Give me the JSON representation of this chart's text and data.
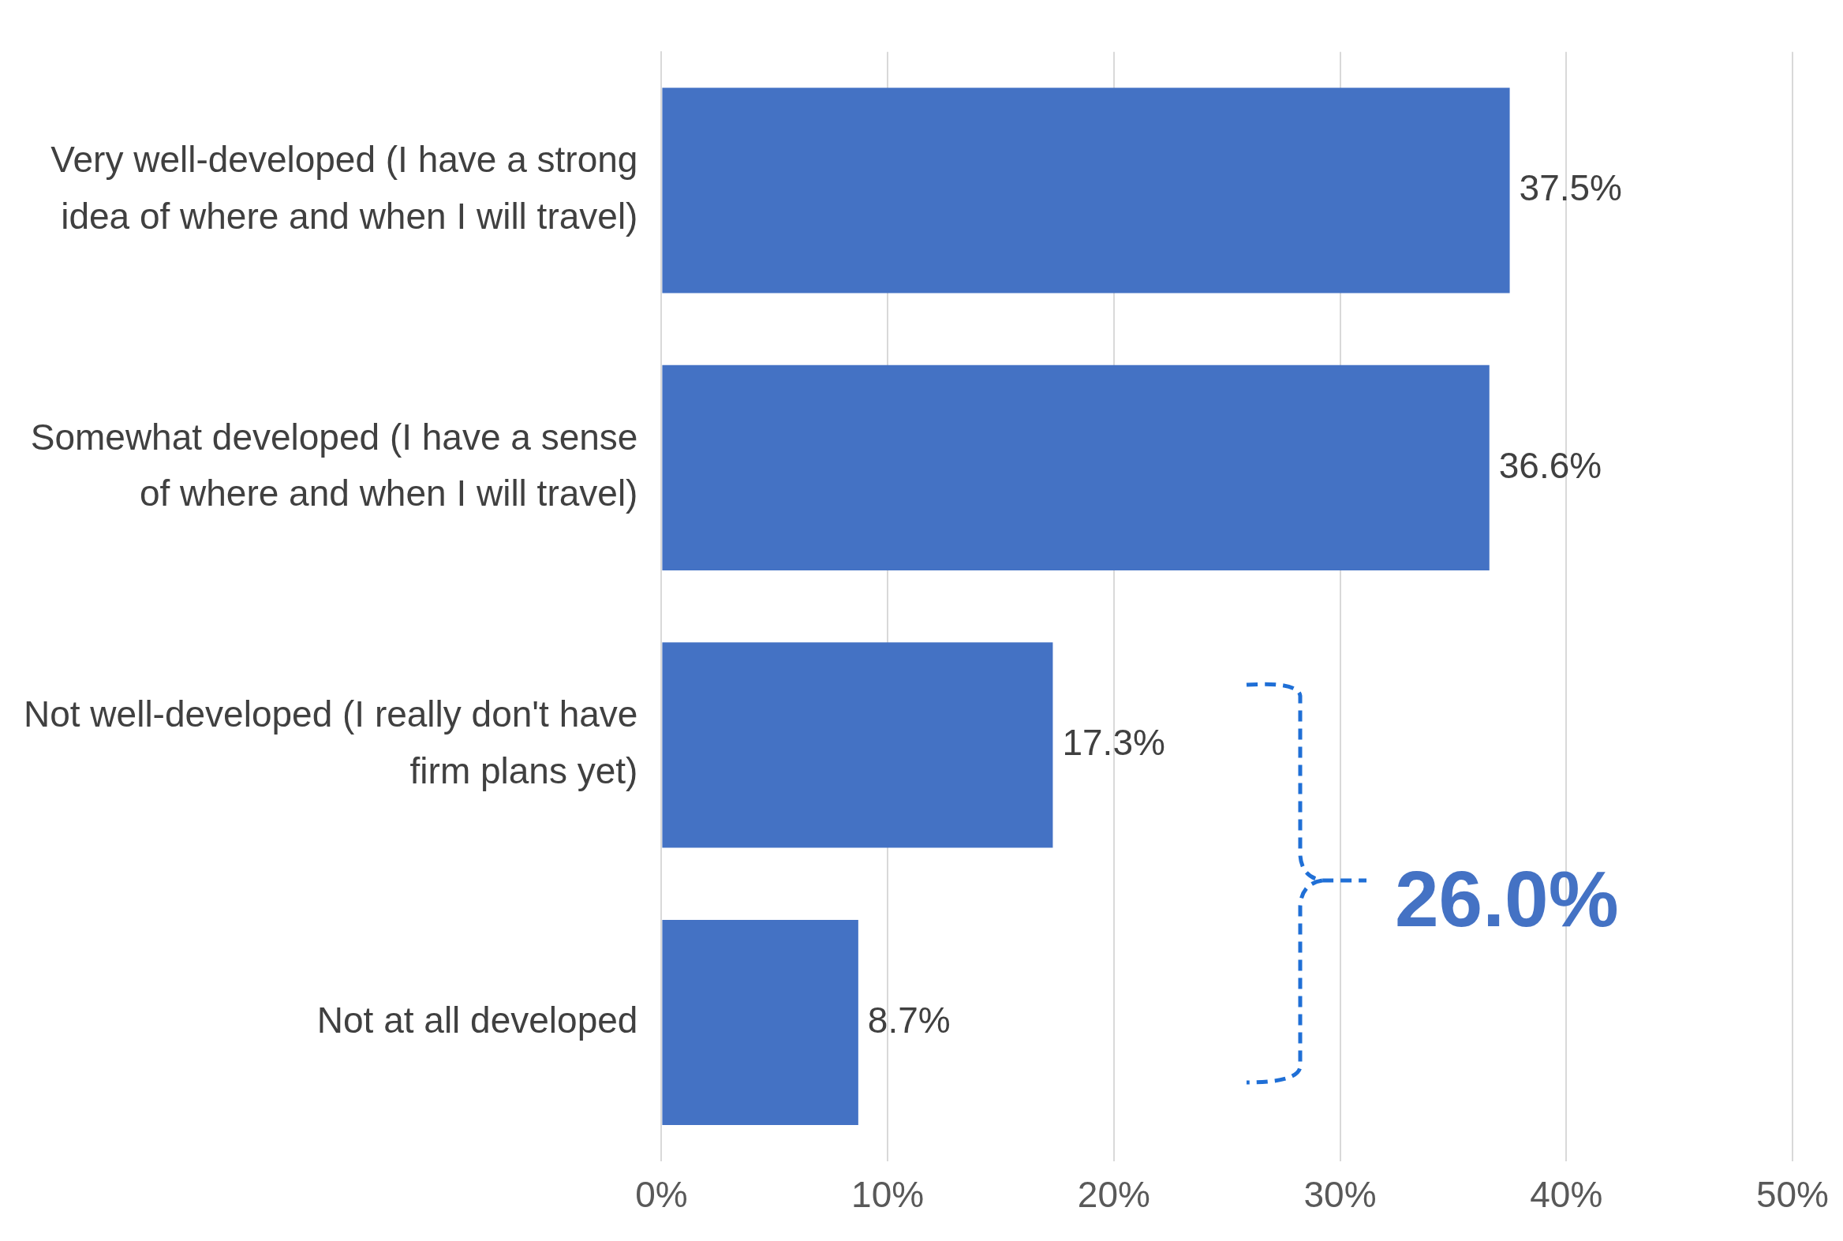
{
  "chart_data": {
    "type": "bar",
    "orientation": "horizontal",
    "categories": [
      "Very well-developed (I have a strong idea of where and when I will travel)",
      "Somewhat developed (I have a sense of where and when I will travel)",
      "Not well-developed (I really don't have firm plans yet)",
      "Not at all developed"
    ],
    "values": [
      37.5,
      36.6,
      17.3,
      8.7
    ],
    "value_labels": [
      "37.5%",
      "36.6%",
      "17.3%",
      "8.7%"
    ],
    "color": "#4472c4",
    "xlim": [
      0,
      50
    ],
    "xticks": [
      {
        "value": 0,
        "label": "0%"
      },
      {
        "value": 10,
        "label": "10%"
      },
      {
        "value": 20,
        "label": "20%"
      },
      {
        "value": 30,
        "label": "30%"
      },
      {
        "value": 40,
        "label": "40%"
      },
      {
        "value": 50,
        "label": "50%"
      }
    ],
    "grid": "x",
    "legend": false,
    "annotations": [
      "26.0%"
    ]
  }
}
